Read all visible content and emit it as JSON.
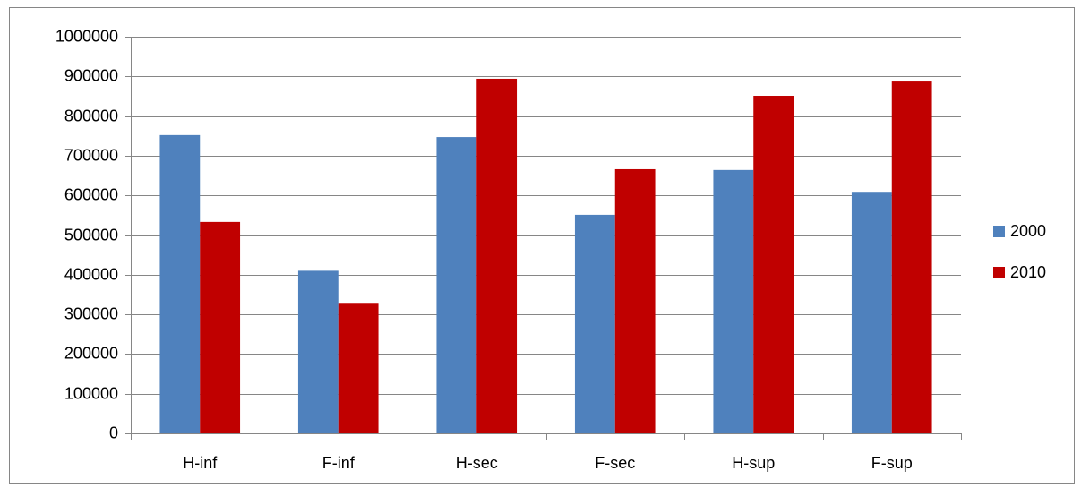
{
  "chart_data": {
    "type": "bar",
    "categories": [
      "H-inf",
      "F-inf",
      "H-sec",
      "F-sec",
      "H-sup",
      "F-sup"
    ],
    "series": [
      {
        "name": "2000",
        "color": "#4f81bd",
        "values": [
          752000,
          410000,
          747000,
          551000,
          664000,
          609000
        ]
      },
      {
        "name": "2010",
        "color": "#c00000",
        "values": [
          533000,
          329000,
          894000,
          666000,
          851000,
          887000
        ]
      }
    ],
    "ylim": [
      0,
      1000000
    ],
    "yticks": [
      0,
      100000,
      200000,
      300000,
      400000,
      500000,
      600000,
      700000,
      800000,
      900000,
      1000000
    ],
    "grid": true,
    "legend": "right"
  }
}
